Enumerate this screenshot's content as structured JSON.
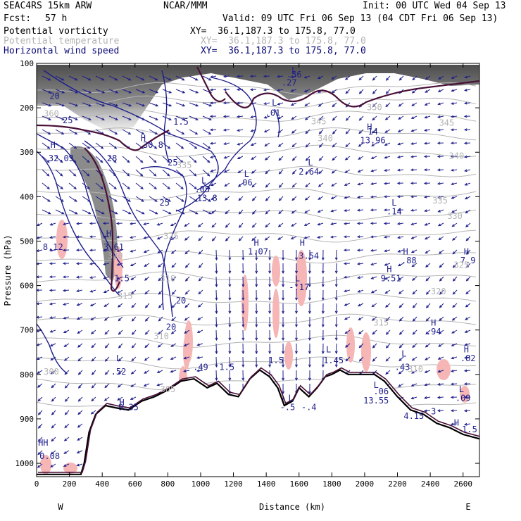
{
  "header": {
    "model": "SEAC4RS 15km ARW",
    "center": "NCAR/MMM",
    "init": "Init: 00 UTC Wed 04 Sep 13",
    "fcst_label": "Fcst:",
    "fcst_value": "57 h",
    "valid": "Valid: 09 UTC Fri 06 Sep 13 (04 CDT Fri 06 Sep 13)"
  },
  "fields": [
    {
      "name": "Potential vorticity",
      "xy": "XY=  36.1,187.3 to 175.8, 77.0",
      "color": "#000000"
    },
    {
      "name": "Potential temperature",
      "xy": "XY=  36.1,187.3 to 175.8, 77.0",
      "color": "#b4b4b4"
    },
    {
      "name": "Horizontal wind speed",
      "xy": "XY=  36.1,187.3 to 175.8, 77.0",
      "color": "#0a0a78"
    }
  ],
  "colors": {
    "terrain": "#000000",
    "pv_contour": "#1e1e8c",
    "pv_thick": "#4a1038",
    "theta": "#b4b4b4",
    "pink": "#f6b6b6",
    "wind_arrow": "#1e1e8c"
  },
  "chart_data": {
    "type": "cross-section",
    "xlabel": "Distance (km)",
    "ylabel": "Pressure (hPa)",
    "xlim": [
      0,
      2700
    ],
    "ylim": [
      1030,
      100
    ],
    "x_ticks": [
      0,
      200,
      400,
      600,
      800,
      1000,
      1200,
      1400,
      1600,
      1800,
      2000,
      2200,
      2400,
      2600
    ],
    "y_ticks": [
      100,
      200,
      300,
      400,
      500,
      600,
      700,
      800,
      900,
      1000
    ],
    "x_end_labels": {
      "left": "W",
      "right": "E"
    },
    "terrain": {
      "x": [
        0,
        270,
        290,
        320,
        360,
        420,
        480,
        560,
        640,
        720,
        800,
        880,
        960,
        1040,
        1100,
        1170,
        1230,
        1300,
        1360,
        1420,
        1470,
        1510,
        1560,
        1600,
        1660,
        1710,
        1760,
        1800,
        1850,
        1900,
        1980,
        2060,
        2120,
        2200,
        2280,
        2360,
        2440,
        2520,
        2600,
        2700
      ],
      "p": [
        1025,
        1025,
        1000,
        930,
        890,
        870,
        875,
        880,
        860,
        850,
        835,
        815,
        810,
        830,
        820,
        845,
        850,
        810,
        790,
        805,
        830,
        870,
        860,
        830,
        850,
        830,
        805,
        800,
        790,
        800,
        800,
        800,
        815,
        850,
        880,
        890,
        910,
        920,
        935,
        945
      ]
    },
    "pv_labels": [
      {
        "x": 110,
        "p": 180,
        "t": "20"
      },
      {
        "x": 190,
        "p": 235,
        "t": "25"
      },
      {
        "x": 100,
        "p": 290,
        "t": "H"
      },
      {
        "x": 150,
        "p": 320,
        "t": "32.03"
      },
      {
        "x": 460,
        "p": 320,
        "t": "28"
      },
      {
        "x": 650,
        "p": 275,
        "t": "H"
      },
      {
        "x": 710,
        "p": 290,
        "t": "30.8"
      },
      {
        "x": 880,
        "p": 238,
        "t": "1.5"
      },
      {
        "x": 830,
        "p": 330,
        "t": "25"
      },
      {
        "x": 780,
        "p": 420,
        "t": "25"
      },
      {
        "x": 1020,
        "p": 370,
        "t": "L"
      },
      {
        "x": 1010,
        "p": 390,
        "t": ".05"
      },
      {
        "x": 1040,
        "p": 410,
        "t": "13.8"
      },
      {
        "x": 1280,
        "p": 355,
        "t": "L"
      },
      {
        "x": 1270,
        "p": 375,
        "t": ".06"
      },
      {
        "x": 1570,
        "p": 122,
        "t": "L"
      },
      {
        "x": 1570,
        "p": 132,
        "t": ".56"
      },
      {
        "x": 1540,
        "p": 150,
        "t": ".27"
      },
      {
        "x": 1450,
        "p": 195,
        "t": "L"
      },
      {
        "x": 1440,
        "p": 218,
        "t": ".01"
      },
      {
        "x": 1670,
        "p": 330,
        "t": "L"
      },
      {
        "x": 1660,
        "p": 350,
        "t": "2.64"
      },
      {
        "x": 2030,
        "p": 250,
        "t": "H"
      },
      {
        "x": 2050,
        "p": 260,
        "t": "14"
      },
      {
        "x": 2050,
        "p": 280,
        "t": "13.96"
      },
      {
        "x": 2180,
        "p": 420,
        "t": "L"
      },
      {
        "x": 2180,
        "p": 440,
        "t": ".14"
      },
      {
        "x": 100,
        "p": 520,
        "t": "8.12"
      },
      {
        "x": 440,
        "p": 490,
        "t": "H"
      },
      {
        "x": 470,
        "p": 520,
        "t": "3.61"
      },
      {
        "x": 520,
        "p": 590,
        "t": "1.5"
      },
      {
        "x": 880,
        "p": 640,
        "t": "20"
      },
      {
        "x": 820,
        "p": 700,
        "t": "20"
      },
      {
        "x": 1340,
        "p": 510,
        "t": "H"
      },
      {
        "x": 1350,
        "p": 530,
        "t": "1.07"
      },
      {
        "x": 1620,
        "p": 510,
        "t": "H"
      },
      {
        "x": 1660,
        "p": 540,
        "t": "3.54"
      },
      {
        "x": 1590,
        "p": 590,
        "t": "L"
      },
      {
        "x": 1600,
        "p": 610,
        "t": "-.17"
      },
      {
        "x": 2250,
        "p": 530,
        "t": "H"
      },
      {
        "x": 2270,
        "p": 550,
        "t": ".88"
      },
      {
        "x": 2150,
        "p": 570,
        "t": "H"
      },
      {
        "x": 2160,
        "p": 590,
        "t": "9.51"
      },
      {
        "x": 2620,
        "p": 530,
        "t": "H"
      },
      {
        "x": 2630,
        "p": 550,
        "t": "7.9"
      },
      {
        "x": 2420,
        "p": 690,
        "t": "H"
      },
      {
        "x": 2420,
        "p": 710,
        "t": ".94"
      },
      {
        "x": 2620,
        "p": 750,
        "t": "H"
      },
      {
        "x": 2630,
        "p": 770,
        "t": ".82"
      },
      {
        "x": 1460,
        "p": 775,
        "t": "1.5"
      },
      {
        "x": 1780,
        "p": 750,
        "t": "L"
      },
      {
        "x": 1810,
        "p": 775,
        "t": "1.45"
      },
      {
        "x": 2240,
        "p": 760,
        "t": "L"
      },
      {
        "x": 2230,
        "p": 790,
        "t": ".43"
      },
      {
        "x": 2070,
        "p": 830,
        "t": "L"
      },
      {
        "x": 2100,
        "p": 845,
        "t": ".06"
      },
      {
        "x": 2070,
        "p": 865,
        "t": "13.55"
      },
      {
        "x": 2300,
        "p": 900,
        "t": "4.15"
      },
      {
        "x": 2420,
        "p": 890,
        "t": "3"
      },
      {
        "x": 2590,
        "p": 840,
        "t": "L"
      },
      {
        "x": 2600,
        "p": 860,
        "t": ".09"
      },
      {
        "x": 2560,
        "p": 915,
        "t": "H"
      },
      {
        "x": 2640,
        "p": 930,
        "t": "1.5"
      },
      {
        "x": 500,
        "p": 770,
        "t": "L"
      },
      {
        "x": 500,
        "p": 800,
        "t": ".52"
      },
      {
        "x": 1000,
        "p": 790,
        "t": ".49"
      },
      {
        "x": 1160,
        "p": 790,
        "t": "1.5"
      },
      {
        "x": 520,
        "p": 870,
        "t": "H"
      },
      {
        "x": 560,
        "p": 880,
        "t": "9.35"
      },
      {
        "x": 1550,
        "p": 860,
        "t": "L"
      },
      {
        "x": 1530,
        "p": 880,
        "t": "-.5"
      },
      {
        "x": 1660,
        "p": 880,
        "t": "-.4"
      },
      {
        "x": 40,
        "p": 960,
        "t": "HH"
      },
      {
        "x": 80,
        "p": 990,
        "t": "0.08"
      }
    ],
    "theta_labels": [
      {
        "x": 90,
        "p": 220,
        "t": "360"
      },
      {
        "x": 2060,
        "p": 205,
        "t": "350"
      },
      {
        "x": 1760,
        "p": 275,
        "t": "340"
      },
      {
        "x": 2560,
        "p": 315,
        "t": "340"
      },
      {
        "x": 900,
        "p": 335,
        "t": "335"
      },
      {
        "x": 2500,
        "p": 240,
        "t": "345"
      },
      {
        "x": 1720,
        "p": 237,
        "t": "345"
      },
      {
        "x": 2460,
        "p": 415,
        "t": "335"
      },
      {
        "x": 2550,
        "p": 450,
        "t": "330"
      },
      {
        "x": 820,
        "p": 495,
        "t": "325"
      },
      {
        "x": 2590,
        "p": 560,
        "t": "325"
      },
      {
        "x": 480,
        "p": 540,
        "t": "320"
      },
      {
        "x": 2450,
        "p": 620,
        "t": "320"
      },
      {
        "x": 800,
        "p": 590,
        "t": "310"
      },
      {
        "x": 540,
        "p": 630,
        "t": "315"
      },
      {
        "x": 2100,
        "p": 690,
        "t": "315"
      },
      {
        "x": 760,
        "p": 720,
        "t": "310"
      },
      {
        "x": 2310,
        "p": 795,
        "t": "310"
      },
      {
        "x": 90,
        "p": 800,
        "t": "300"
      },
      {
        "x": 800,
        "p": 840,
        "t": "305"
      }
    ]
  }
}
